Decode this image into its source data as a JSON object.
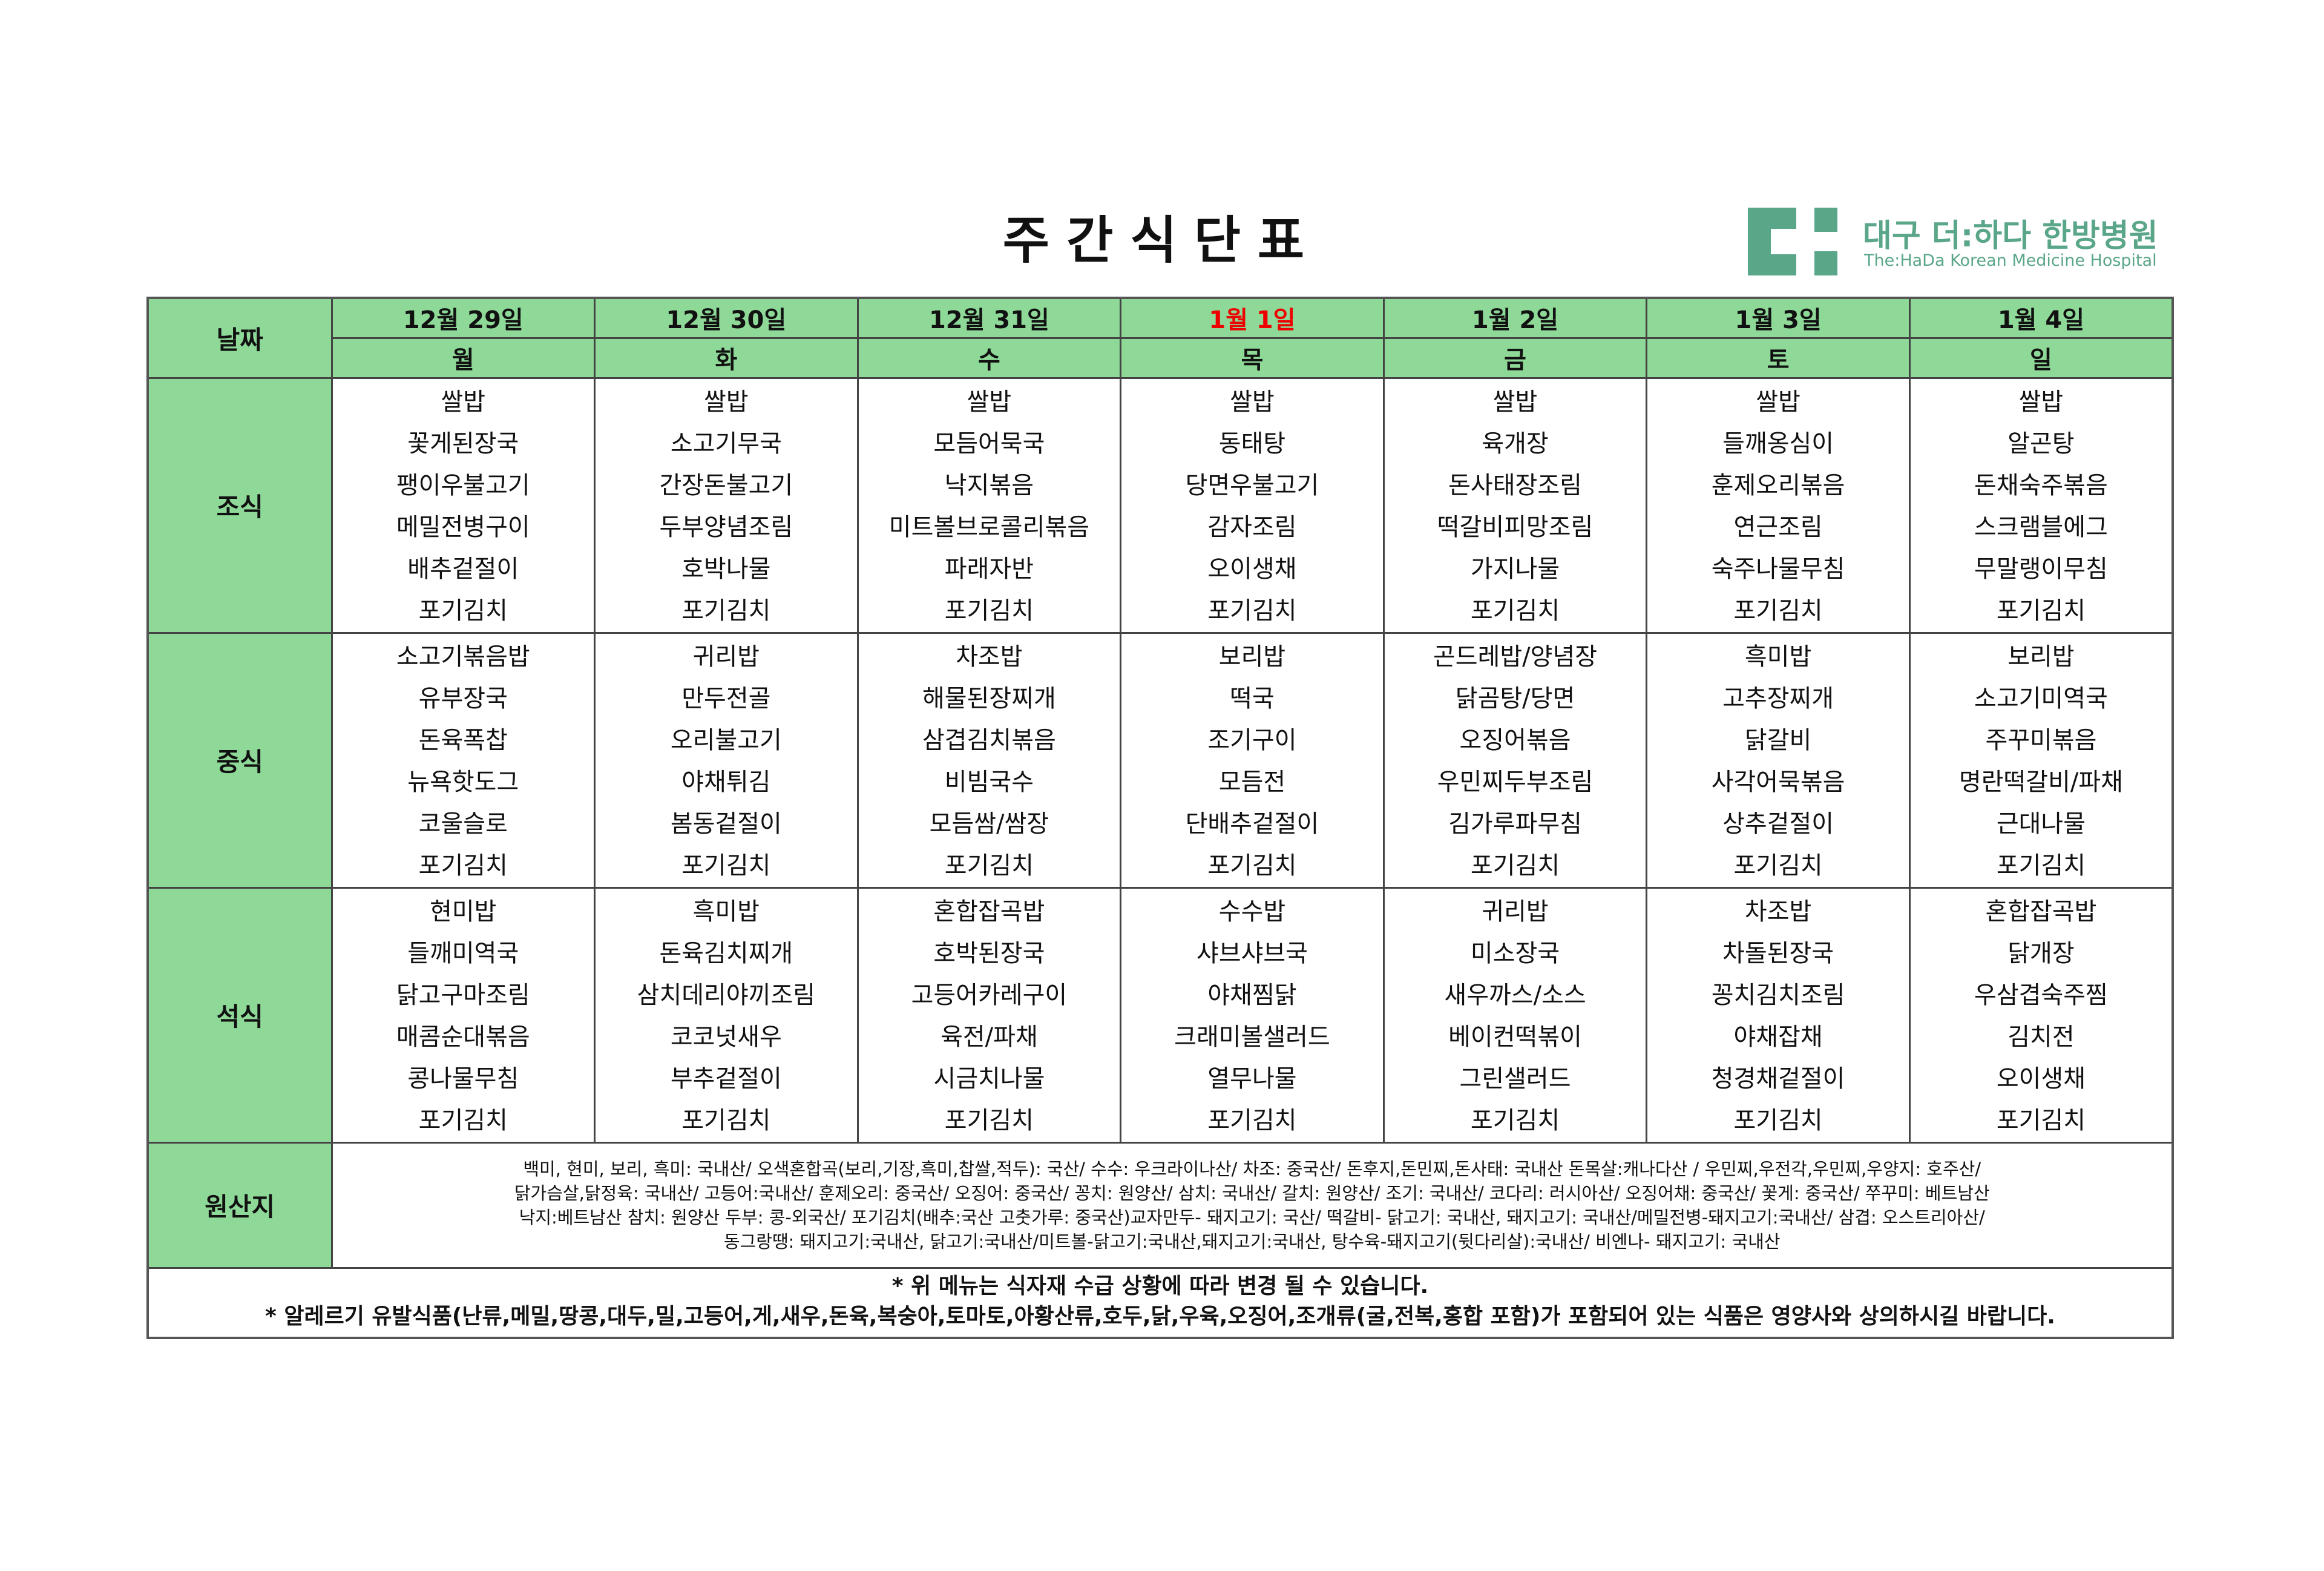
{
  "title": "주간식단표",
  "logo": {
    "korean": "대구 더:하다 한방병원",
    "english": "The:HaDa Korean Medicine Hospital",
    "color": "#5aa688"
  },
  "colors": {
    "header_bg": "#8ed998",
    "holiday": "#ee0000"
  },
  "header": {
    "date_label": "날짜"
  },
  "days": [
    {
      "date": "12월 29일",
      "weekday": "월",
      "holiday": false
    },
    {
      "date": "12월 30일",
      "weekday": "화",
      "holiday": false
    },
    {
      "date": "12월 31일",
      "weekday": "수",
      "holiday": false
    },
    {
      "date": "1월 1일",
      "weekday": "목",
      "holiday": true
    },
    {
      "date": "1월 2일",
      "weekday": "금",
      "holiday": false
    },
    {
      "date": "1월 3일",
      "weekday": "토",
      "holiday": false
    },
    {
      "date": "1월 4일",
      "weekday": "일",
      "holiday": false
    }
  ],
  "meals": [
    {
      "label": "조식",
      "menus": [
        [
          "쌀밥",
          "꽃게된장국",
          "팽이우불고기",
          "메밀전병구이",
          "배추겉절이",
          "포기김치"
        ],
        [
          "쌀밥",
          "소고기무국",
          "간장돈불고기",
          "두부양념조림",
          "호박나물",
          "포기김치"
        ],
        [
          "쌀밥",
          "모듬어묵국",
          "낙지볶음",
          "미트볼브로콜리볶음",
          "파래자반",
          "포기김치"
        ],
        [
          "쌀밥",
          "동태탕",
          "당면우불고기",
          "감자조림",
          "오이생채",
          "포기김치"
        ],
        [
          "쌀밥",
          "육개장",
          "돈사태장조림",
          "떡갈비피망조림",
          "가지나물",
          "포기김치"
        ],
        [
          "쌀밥",
          "들깨옹심이",
          "훈제오리볶음",
          "연근조림",
          "숙주나물무침",
          "포기김치"
        ],
        [
          "쌀밥",
          "알곤탕",
          "돈채숙주볶음",
          "스크램블에그",
          "무말랭이무침",
          "포기김치"
        ]
      ]
    },
    {
      "label": "중식",
      "menus": [
        [
          "소고기볶음밥",
          "유부장국",
          "돈육폭찹",
          "뉴욕핫도그",
          "코울슬로",
          "포기김치"
        ],
        [
          "귀리밥",
          "만두전골",
          "오리불고기",
          "야채튀김",
          "봄동겉절이",
          "포기김치"
        ],
        [
          "차조밥",
          "해물된장찌개",
          "삼겹김치볶음",
          "비빔국수",
          "모듬쌈/쌈장",
          "포기김치"
        ],
        [
          "보리밥",
          "떡국",
          "조기구이",
          "모듬전",
          "단배추겉절이",
          "포기김치"
        ],
        [
          "곤드레밥/양념장",
          "닭곰탕/당면",
          "오징어볶음",
          "우민찌두부조림",
          "김가루파무침",
          "포기김치"
        ],
        [
          "흑미밥",
          "고추장찌개",
          "닭갈비",
          "사각어묵볶음",
          "상추겉절이",
          "포기김치"
        ],
        [
          "보리밥",
          "소고기미역국",
          "주꾸미볶음",
          "명란떡갈비/파채",
          "근대나물",
          "포기김치"
        ]
      ]
    },
    {
      "label": "석식",
      "menus": [
        [
          "현미밥",
          "들깨미역국",
          "닭고구마조림",
          "매콤순대볶음",
          "콩나물무침",
          "포기김치"
        ],
        [
          "흑미밥",
          "돈육김치찌개",
          "삼치데리야끼조림",
          "코코넛새우",
          "부추겉절이",
          "포기김치"
        ],
        [
          "혼합잡곡밥",
          "호박된장국",
          "고등어카레구이",
          "육전/파채",
          "시금치나물",
          "포기김치"
        ],
        [
          "수수밥",
          "샤브샤브국",
          "야채찜닭",
          "크래미볼샐러드",
          "열무나물",
          "포기김치"
        ],
        [
          "귀리밥",
          "미소장국",
          "새우까스/소스",
          "베이컨떡볶이",
          "그린샐러드",
          "포기김치"
        ],
        [
          "차조밥",
          "차돌된장국",
          "꽁치김치조림",
          "야채잡채",
          "청경채겉절이",
          "포기김치"
        ],
        [
          "혼합잡곡밥",
          "닭개장",
          "우삼겹숙주찜",
          "김치전",
          "오이생채",
          "포기김치"
        ]
      ]
    }
  ],
  "origin": {
    "label": "원산지",
    "lines": [
      "백미, 현미, 보리, 흑미: 국내산/ 오색혼합곡(보리,기장,흑미,찹쌀,적두): 국산/ 수수: 우크라이나산/ 차조: 중국산/ 돈후지,돈민찌,돈사태: 국내산 돈목살:캐나다산 / 우민찌,우전각,우민찌,우양지: 호주산/",
      "닭가슴살,닭정육: 국내산/ 고등어:국내산/ 훈제오리: 중국산/ 오징어: 중국산/ 꽁치: 원양산/ 삼치: 국내산/ 갈치: 원양산/ 조기: 국내산/ 코다리: 러시아산/ 오징어채: 중국산/ 꽃게: 중국산/ 쭈꾸미: 베트남산",
      "낙지:베트남산 참치: 원양산 두부: 콩-외국산/ 포기김치(배추:국산 고춧가루: 중국산)교자만두- 돼지고기: 국산/ 떡갈비- 닭고기: 국내산, 돼지고기: 국내산/메밀전병-돼지고기:국내산/ 삼겹: 오스트리아산/",
      "동그랑땡: 돼지고기:국내산, 닭고기:국내산/미트볼-닭고기:국내산,돼지고기:국내산, 탕수육-돼지고기(뒷다리살):국내산/ 비엔나- 돼지고기: 국내산"
    ]
  },
  "notes": [
    "* 위 메뉴는 식자재 수급 상황에 따라 변경 될 수 있습니다.",
    "* 알레르기 유발식품(난류,메밀,땅콩,대두,밀,고등어,게,새우,돈육,복숭아,토마토,아황산류,호두,닭,우육,오징어,조개류(굴,전복,홍합 포함)가 포함되어 있는 식품은 영양사와 상의하시길 바랍니다."
  ]
}
